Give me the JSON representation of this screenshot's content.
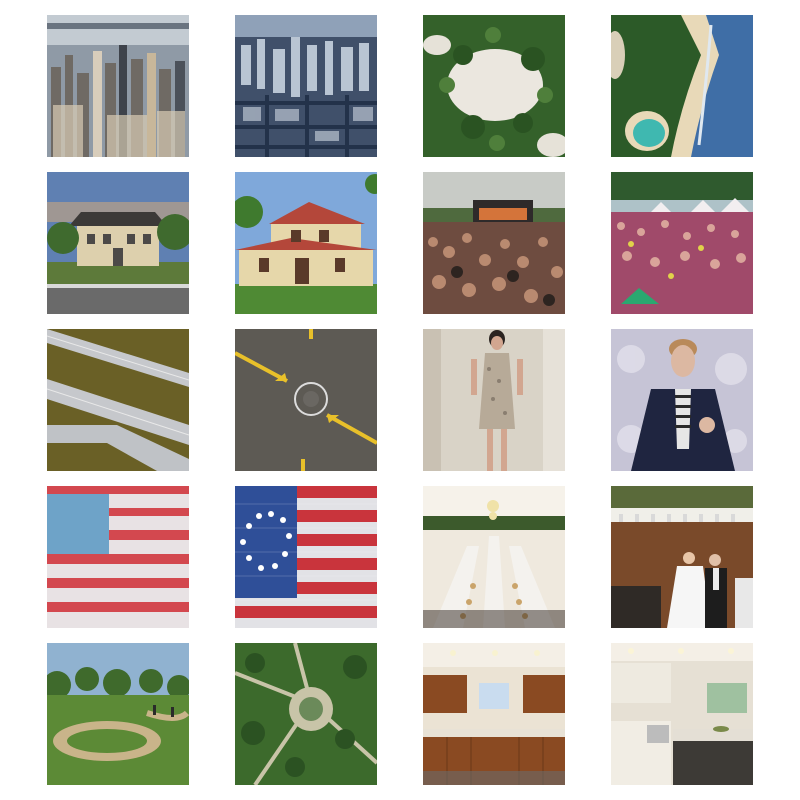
{
  "grid": {
    "rows": 5,
    "columns": 4,
    "tiles": [
      {
        "icon": "city-skyline-aerial-image",
        "palette": [
          "#9aa7b4",
          "#5b6470",
          "#c9b8a0"
        ]
      },
      {
        "icon": "city-aerial-dense-image",
        "palette": [
          "#3c4f6a",
          "#8da0b6",
          "#d6dde6"
        ]
      },
      {
        "icon": "forest-clearing-aerial-image",
        "palette": [
          "#3d6b2e",
          "#e8e4dc",
          "#2a5322"
        ]
      },
      {
        "icon": "coastline-beach-aerial-image",
        "palette": [
          "#2e5a2a",
          "#e7d8b8",
          "#3d6fa8"
        ]
      },
      {
        "icon": "house-suburban-image",
        "palette": [
          "#5d7cae",
          "#d9c9a4",
          "#4f7a3a"
        ]
      },
      {
        "icon": "house-red-roof-image",
        "palette": [
          "#7ea7d8",
          "#b94a3a",
          "#e5d6a8"
        ]
      },
      {
        "icon": "concert-crowd-image",
        "palette": [
          "#c6c9c4",
          "#8a5a4a",
          "#3e3330"
        ]
      },
      {
        "icon": "festival-crowd-image",
        "palette": [
          "#2f5a2e",
          "#b8468a",
          "#e3d7dc"
        ]
      },
      {
        "icon": "highway-aerial-image",
        "palette": [
          "#6a6022",
          "#c7c9cc",
          "#8a8240"
        ]
      },
      {
        "icon": "road-markings-aerial-image",
        "palette": [
          "#5e5b55",
          "#e8c02a",
          "#d9d9d9"
        ]
      },
      {
        "icon": "woman-dress-image",
        "palette": [
          "#d8d2c6",
          "#b5a99a",
          "#2a2320"
        ]
      },
      {
        "icon": "man-singing-image",
        "palette": [
          "#c8c6d6",
          "#1f2540",
          "#d9b9a4"
        ]
      },
      {
        "icon": "american-flag-faded-image",
        "palette": [
          "#d24a52",
          "#e8e4e6",
          "#6fa3c8"
        ]
      },
      {
        "icon": "american-flag-wood-image",
        "palette": [
          "#c9343c",
          "#e3e3e8",
          "#2f4f98"
        ]
      },
      {
        "icon": "banquet-hall-image",
        "palette": [
          "#f0ece2",
          "#3a5a2a",
          "#caa46a"
        ]
      },
      {
        "icon": "wedding-couple-image",
        "palette": [
          "#7a4a2a",
          "#f2f2f2",
          "#1e1e1e"
        ]
      },
      {
        "icon": "park-path-image",
        "palette": [
          "#8fb0cf",
          "#4f7a2e",
          "#c9b48a"
        ]
      },
      {
        "icon": "park-aerial-image",
        "palette": [
          "#3d6b2e",
          "#c9c4a8",
          "#7a8a70"
        ]
      },
      {
        "icon": "kitchen-wood-cabinets-image",
        "palette": [
          "#8a4a22",
          "#e9e1d2",
          "#6b6b6b"
        ]
      },
      {
        "icon": "kitchen-white-cabinets-image",
        "palette": [
          "#e7e2d6",
          "#3e3a36",
          "#8a8580"
        ]
      }
    ]
  }
}
